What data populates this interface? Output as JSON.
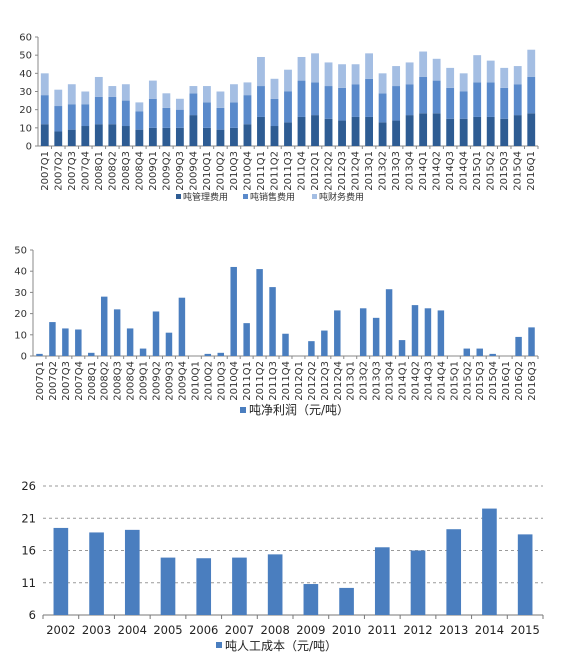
{
  "chart_data": [
    {
      "type": "bar",
      "stacked": true,
      "categories": [
        "2007Q1",
        "2007Q2",
        "2007Q3",
        "2007Q4",
        "2008Q1",
        "2008Q2",
        "2008Q3",
        "2008Q4",
        "2009Q1",
        "2009Q2",
        "2009Q3",
        "2009Q4",
        "2010Q1",
        "2010Q2",
        "2010Q3",
        "2010Q4",
        "2011Q1",
        "2011Q2",
        "2011Q3",
        "2011Q4",
        "2012Q1",
        "2012Q2",
        "2012Q3",
        "2012Q4",
        "2013Q1",
        "2013Q2",
        "2013Q3",
        "2013Q4",
        "2014Q1",
        "2014Q2",
        "2014Q3",
        "2014Q4",
        "2015Q1",
        "2015Q2",
        "2015Q3",
        "2015Q4",
        "2016Q1"
      ],
      "series": [
        {
          "name": "吨管理费用",
          "color": "#2e5c93",
          "values": [
            12,
            8,
            9,
            11,
            12,
            12,
            11,
            9,
            10,
            10,
            10,
            17,
            10,
            9,
            10,
            12,
            16,
            11,
            13,
            16,
            17,
            15,
            14,
            16,
            16,
            13,
            14,
            17,
            18,
            18,
            15,
            15,
            16,
            16,
            15,
            17,
            18
          ]
        },
        {
          "name": "吨销售费用",
          "color": "#5a8acb",
          "values": [
            16,
            14,
            14,
            12,
            15,
            15,
            14,
            10,
            16,
            11,
            10,
            12,
            14,
            12,
            14,
            16,
            17,
            15,
            17,
            20,
            18,
            18,
            18,
            18,
            21,
            16,
            19,
            17,
            20,
            18,
            17,
            15,
            19,
            19,
            17,
            17,
            20
          ]
        },
        {
          "name": "吨财务费用",
          "color": "#a4bee3",
          "values": [
            12,
            9,
            11,
            7,
            11,
            6,
            9,
            5,
            10,
            8,
            6,
            4,
            9,
            9,
            10,
            7,
            16,
            11,
            12,
            13,
            16,
            13,
            13,
            11,
            14,
            11,
            11,
            12,
            14,
            12,
            11,
            10,
            15,
            12,
            11,
            10,
            15
          ]
        }
      ],
      "ylim": [
        0,
        60
      ],
      "yticks": [
        0,
        10,
        20,
        30,
        40,
        50,
        60
      ],
      "legend_position": "bottom"
    },
    {
      "type": "bar",
      "categories": [
        "2007Q1",
        "2007Q2",
        "2007Q3",
        "2007Q4",
        "2008Q1",
        "2008Q2",
        "2008Q3",
        "2008Q4",
        "2009Q1",
        "2009Q2",
        "2009Q3",
        "2009Q4",
        "2010Q1",
        "2010Q2",
        "2010Q3",
        "2010Q4",
        "2011Q1",
        "2011Q2",
        "2011Q3",
        "2011Q4",
        "2012Q1",
        "2012Q2",
        "2012Q3",
        "2012Q4",
        "2013Q1",
        "2013Q2",
        "2013Q3",
        "2013Q4",
        "2014Q1",
        "2014Q2",
        "2014Q3",
        "2014Q4",
        "2015Q1",
        "2015Q2",
        "2015Q3",
        "2015Q4",
        "2016Q1",
        "2016Q2",
        "2016Q3"
      ],
      "series": [
        {
          "name": "吨净利润（元/吨）",
          "color": "#4a7ebf",
          "values": [
            1,
            16,
            13,
            12.5,
            1.5,
            28,
            22,
            13,
            3.5,
            21,
            11,
            27.5,
            0,
            1,
            1.5,
            42,
            15.5,
            41,
            32.5,
            10.5,
            0,
            7,
            12,
            21.5,
            0,
            22.5,
            18,
            31.5,
            7.5,
            24,
            22.5,
            21.5,
            0,
            3.5,
            3.5,
            1,
            0,
            9,
            13.5
          ]
        }
      ],
      "ylim": [
        0,
        50
      ],
      "yticks": [
        0,
        10,
        20,
        30,
        40,
        50
      ],
      "xtick_labels": [
        "2007Q1",
        "2007Q2",
        "2007Q3",
        "2007Q4",
        "2008Q1",
        "2008Q2",
        "2008Q3",
        "2008Q4",
        "2009Q1",
        "2009Q2",
        "2009Q3",
        "2009Q4",
        "2010Q1",
        "2010Q2",
        "2010Q3",
        "2010Q4",
        "2011Q1",
        "2011Q2",
        "2011Q3",
        "2011Q4",
        "2012Q1",
        "2012Q2",
        "2012Q3",
        "2012Q4",
        "2013Q1",
        "2013Q2",
        "2013Q3",
        "2013Q4",
        "2014Q1",
        "2014Q2",
        "2014Q3",
        "2014Q4",
        "2015Q1",
        "2015Q2",
        "2015Q3",
        "2015Q4",
        "2016Q1",
        "2016Q2",
        "2016Q3"
      ],
      "legend_position": "bottom"
    },
    {
      "type": "bar",
      "categories": [
        "2002",
        "2003",
        "2004",
        "2005",
        "2006",
        "2007",
        "2008",
        "2009",
        "2010",
        "2011",
        "2012",
        "2013",
        "2014",
        "2015"
      ],
      "series": [
        {
          "name": "吨人工成本（元/吨）",
          "color": "#4a7ebf",
          "values": [
            19.5,
            18.8,
            19.2,
            14.9,
            14.8,
            14.9,
            15.4,
            10.8,
            10.2,
            16.5,
            16.0,
            19.3,
            22.5,
            18.5
          ]
        }
      ],
      "ylim": [
        6,
        26
      ],
      "yticks": [
        6,
        11,
        16,
        21,
        26
      ],
      "grid": "dashed-horizontal",
      "legend_position": "bottom"
    }
  ]
}
